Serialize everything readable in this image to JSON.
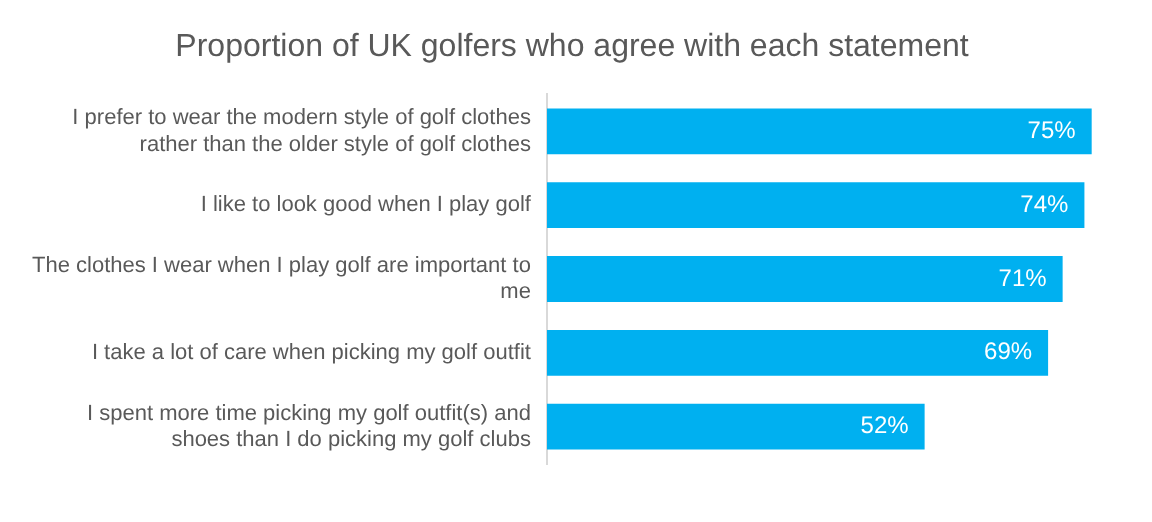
{
  "chart_data": {
    "type": "bar",
    "orientation": "horizontal",
    "title": "Proportion of UK golfers who agree with each statement",
    "categories": [
      "I prefer to wear the modern style of golf clothes rather than the older style of golf clothes",
      "I like to look good when I play golf",
      "The clothes I wear when I play golf are important to me",
      "I take a lot of care when picking my golf outfit",
      "I spent more time picking my golf outfit(s) and shoes than I do picking my golf clubs"
    ],
    "values": [
      75,
      74,
      71,
      69,
      52
    ],
    "value_labels": [
      "75%",
      "74%",
      "71%",
      "69%",
      "52%"
    ],
    "color": "#00b0f0"
  }
}
